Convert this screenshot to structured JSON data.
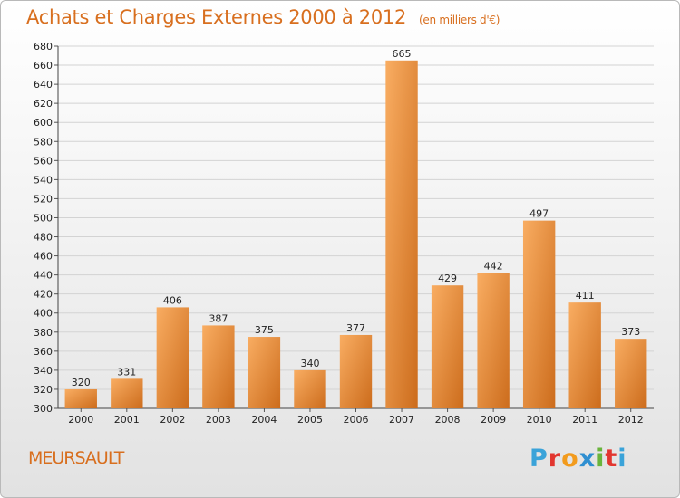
{
  "header": {
    "title": "Achats et Charges Externes 2000 à 2012",
    "subtitle": "(en milliers d'€)"
  },
  "footer": {
    "commune": "MEURSAULT",
    "logo_letters": [
      "P",
      "r",
      "o",
      "x",
      "i",
      "t",
      "i"
    ]
  },
  "colors": {
    "accent": "#d86f1f",
    "bar_light": "#f7a85a",
    "bar_dark": "#d07020",
    "logo": [
      "#3aa3d9",
      "#e2362f",
      "#f29b1d",
      "#2f8fd1",
      "#69b43c",
      "#e2362f",
      "#3aa3d9"
    ]
  },
  "chart_data": {
    "type": "bar",
    "title": "Achats et Charges Externes 2000 à 2012",
    "subtitle": "(en milliers d'€)",
    "categories": [
      "2000",
      "2001",
      "2002",
      "2003",
      "2004",
      "2005",
      "2006",
      "2007",
      "2008",
      "2009",
      "2010",
      "2011",
      "2012"
    ],
    "values": [
      320,
      331,
      406,
      387,
      375,
      340,
      377,
      665,
      429,
      442,
      497,
      411,
      373
    ],
    "ylim": [
      300,
      680
    ],
    "yticks": [
      300,
      320,
      340,
      360,
      380,
      400,
      420,
      440,
      460,
      480,
      500,
      520,
      540,
      560,
      580,
      600,
      620,
      640,
      660,
      680
    ],
    "grid": true,
    "data_labels": true
  }
}
